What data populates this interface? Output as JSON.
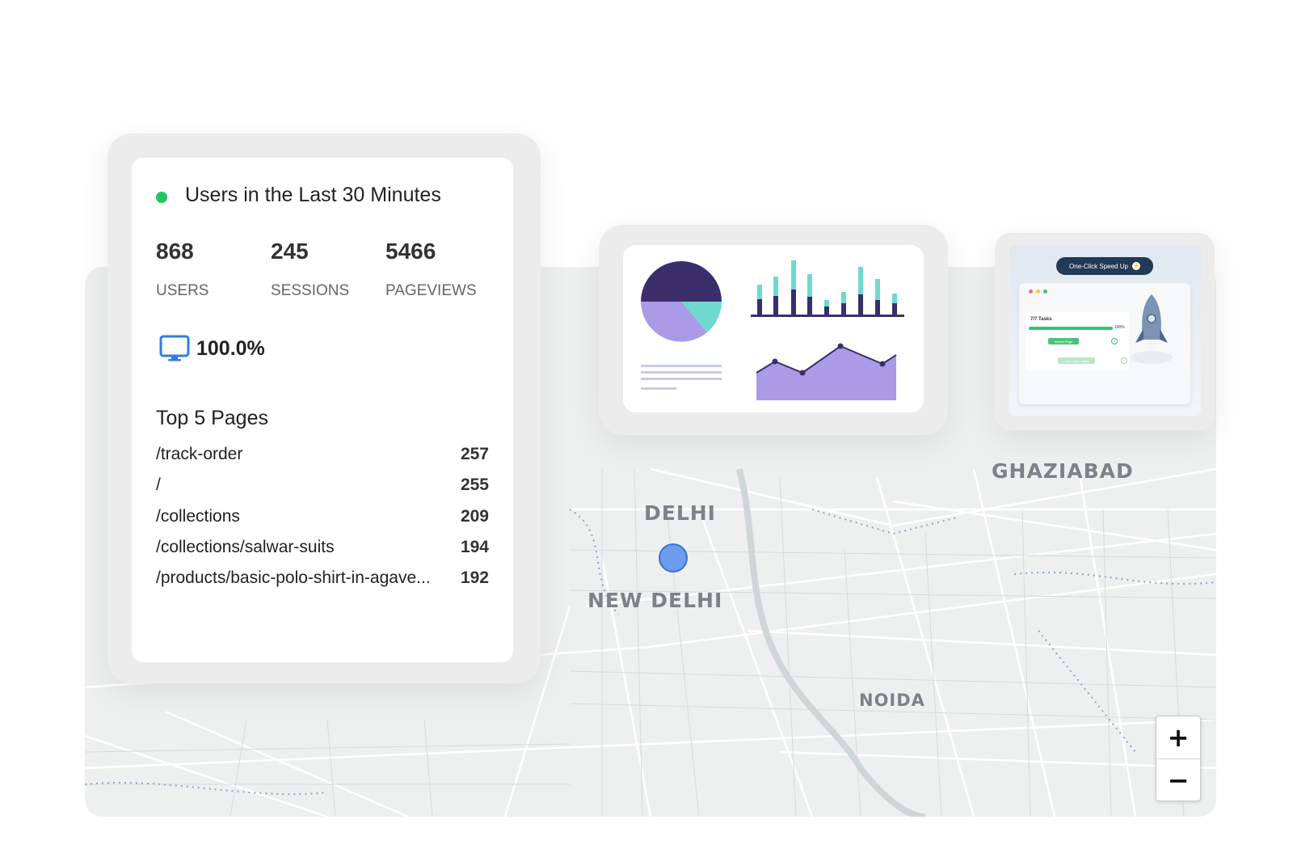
{
  "stats": {
    "title": "Users in the Last 30 Minutes",
    "metrics": [
      {
        "value": "868",
        "label": "USERS"
      },
      {
        "value": "245",
        "label": "SESSIONS"
      },
      {
        "value": "5466",
        "label": "PAGEVIEWS"
      }
    ],
    "device": {
      "icon": "desktop-icon",
      "percent": "100.0%"
    },
    "top_pages_title": "Top 5 Pages",
    "top_pages": [
      {
        "path": "/track-order",
        "count": "257"
      },
      {
        "path": "/",
        "count": "255"
      },
      {
        "path": "/collections",
        "count": "209"
      },
      {
        "path": "/collections/salwar-suits",
        "count": "194"
      },
      {
        "path": "/products/basic-polo-shirt-in-agave...",
        "count": "192"
      }
    ]
  },
  "map": {
    "labels": {
      "delhi": "DELHI",
      "new_delhi": "NEW DELHI",
      "ghaziabad": "GHAZIABAD",
      "noida": "NOIDA"
    },
    "zoom_in": "+",
    "zoom_out": "−"
  },
  "speed_card": {
    "badge": "One-Click Speed Up",
    "tasks_label": "7/7 Tasks",
    "progress_label": "100%",
    "progress": 1.0,
    "items": [
      "Instant Page",
      "Lazy Load Images"
    ]
  },
  "colors": {
    "accent_green": "#22c55e",
    "chart_navy": "#3a2f6b",
    "chart_teal": "#6fd9d0",
    "chart_purple": "#a99be6",
    "marker_blue": "#6b9cf0"
  }
}
